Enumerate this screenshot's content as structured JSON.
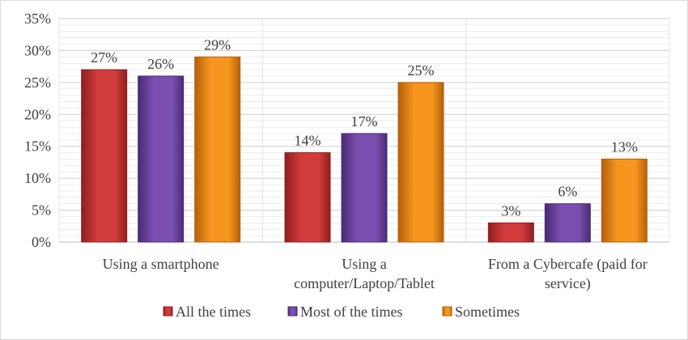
{
  "chart_data": {
    "type": "bar",
    "title": "",
    "xlabel": "",
    "ylabel": "",
    "ylim": [
      0,
      35
    ],
    "yticks": [
      "0%",
      "5%",
      "10%",
      "15%",
      "20%",
      "25%",
      "30%",
      "35%"
    ],
    "grid": true,
    "legend_position": "bottom",
    "categories": [
      [
        "Using a smartphone"
      ],
      [
        "Using a",
        "computer/Laptop/Tablet"
      ],
      [
        "From a Cybercafe (paid for",
        "service)"
      ]
    ],
    "series": [
      {
        "name": "All the times",
        "color": "#d13b3b",
        "dark": "#8e1f1f",
        "values": [
          27,
          14,
          3
        ],
        "labels": [
          "27%",
          "14%",
          "3%"
        ]
      },
      {
        "name": "Most of the times",
        "color": "#7b4fb0",
        "dark": "#4a2b73",
        "values": [
          26,
          17,
          6
        ],
        "labels": [
          "26%",
          "17%",
          "6%"
        ]
      },
      {
        "name": "Sometimes",
        "color": "#f7961e",
        "dark": "#b4600c",
        "values": [
          29,
          25,
          13
        ],
        "labels": [
          "29%",
          "25%",
          "13%"
        ]
      }
    ]
  }
}
